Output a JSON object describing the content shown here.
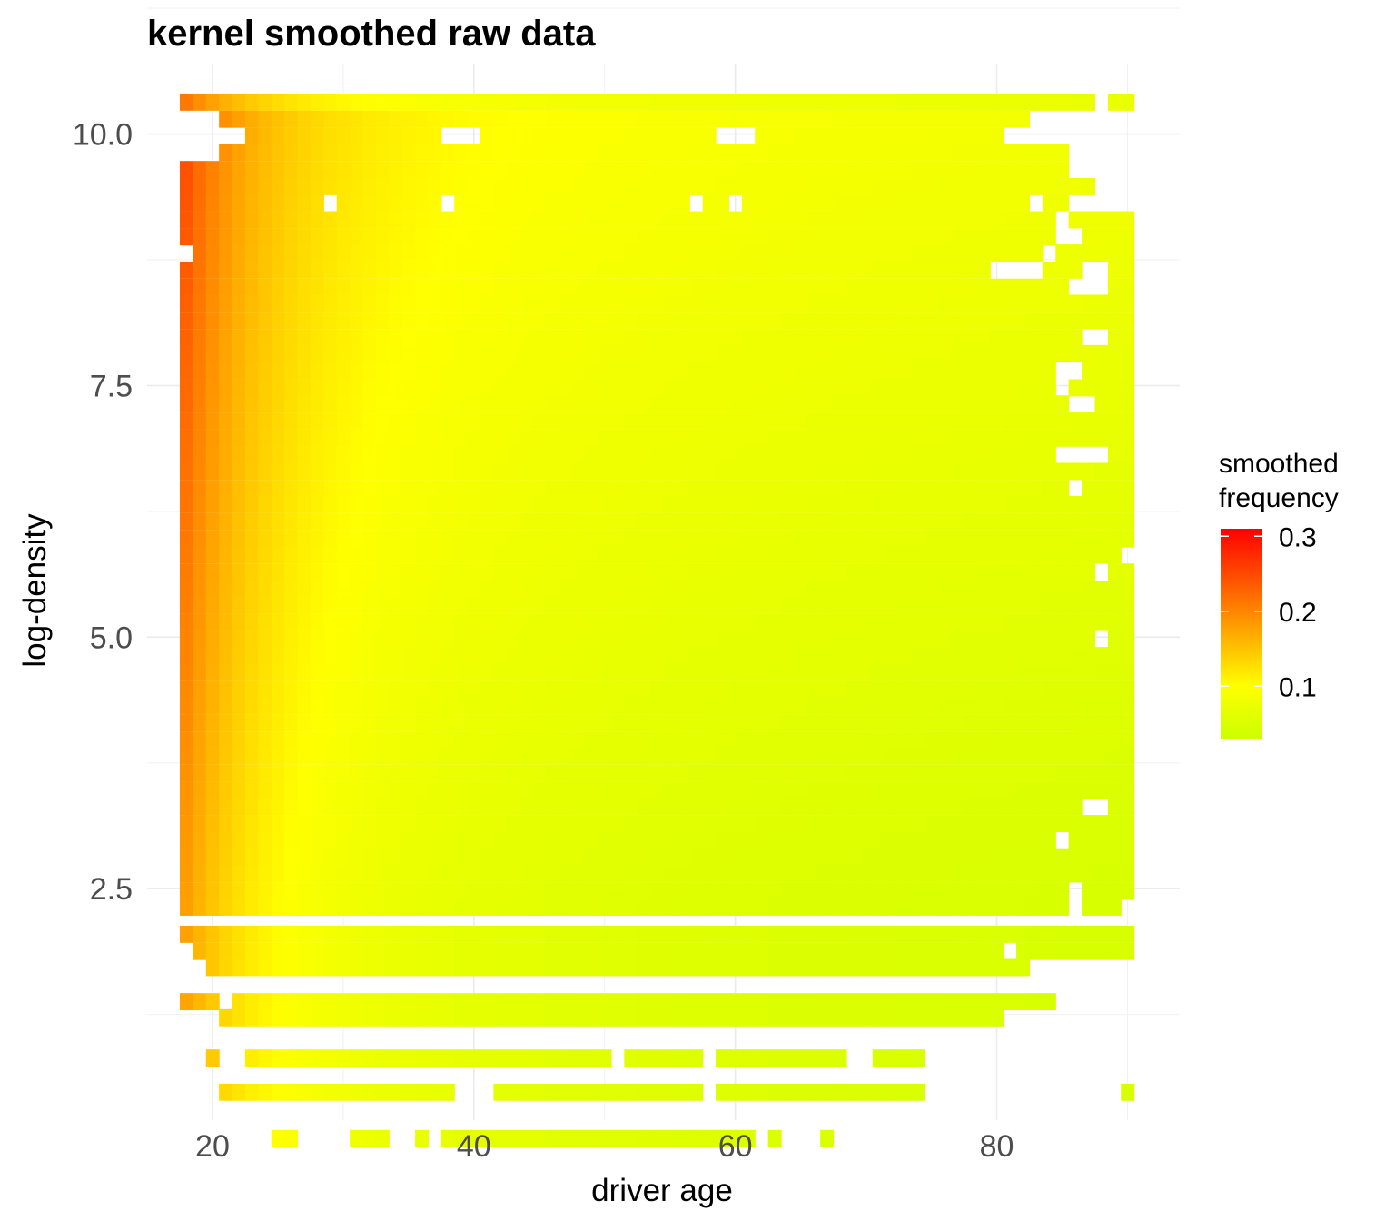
{
  "chart_data": {
    "type": "heatmap",
    "title": "kernel smoothed raw data",
    "xlabel": "driver age",
    "ylabel": "log-density",
    "xlim": [
      15,
      94
    ],
    "ylim": [
      0.2,
      10.7
    ],
    "x_ticks": [
      20,
      40,
      60,
      80
    ],
    "x_tick_labels": [
      "20",
      "40",
      "60",
      "80"
    ],
    "y_ticks": [
      2.5,
      5.0,
      7.5,
      10.0
    ],
    "y_tick_labels": [
      "2.5",
      "5.0",
      "7.5",
      "10.0"
    ],
    "grid": true,
    "legend": {
      "title_lines": [
        "smoothed",
        "frequency"
      ],
      "position": "right",
      "breaks": [
        0.3,
        0.2,
        0.1
      ],
      "break_labels": [
        "0.3",
        "0.2",
        "0.1"
      ],
      "min": 0.03,
      "max": 0.31,
      "colors": {
        "low": "#ccff00",
        "mid": "#ffff00",
        "high": "#ff0000"
      }
    },
    "x_range": [
      18,
      90
    ],
    "x_step": 1,
    "y_step": 0.165,
    "rows": [
      {
        "y": 10.32,
        "spans": [
          [
            18,
            87
          ],
          [
            89,
            90
          ]
        ],
        "v": [
          0.17,
          0.09
        ]
      },
      {
        "y": 10.15,
        "spans": [
          [
            21,
            82
          ]
        ]
      },
      {
        "y": 9.98,
        "spans": [
          [
            23,
            37
          ],
          [
            41,
            58
          ],
          [
            62,
            80
          ]
        ]
      },
      {
        "y": 9.82,
        "spans": [
          [
            21,
            85
          ]
        ]
      },
      {
        "y": 9.65,
        "spans": [
          [
            18,
            85
          ]
        ]
      },
      {
        "y": 9.48,
        "spans": [
          [
            18,
            87
          ]
        ]
      },
      {
        "y": 9.32,
        "spans": [
          [
            18,
            28
          ],
          [
            30,
            37
          ],
          [
            39,
            56
          ],
          [
            58,
            59
          ],
          [
            61,
            82
          ],
          [
            84,
            85
          ]
        ]
      },
      {
        "y": 9.15,
        "spans": [
          [
            18,
            84
          ],
          [
            86,
            90
          ]
        ]
      },
      {
        "y": 8.98,
        "spans": [
          [
            18,
            84
          ],
          [
            87,
            90
          ]
        ]
      },
      {
        "y": 8.82,
        "spans": [
          [
            19,
            83
          ],
          [
            85,
            90
          ]
        ]
      },
      {
        "y": 8.65,
        "spans": [
          [
            18,
            79
          ],
          [
            84,
            86
          ],
          [
            89,
            90
          ]
        ]
      },
      {
        "y": 8.48,
        "spans": [
          [
            18,
            85
          ],
          [
            89,
            90
          ]
        ]
      },
      {
        "y": 8.32,
        "spans": [
          [
            18,
            90
          ]
        ]
      },
      {
        "y": 8.15,
        "spans": [
          [
            18,
            90
          ]
        ]
      },
      {
        "y": 7.98,
        "spans": [
          [
            18,
            86
          ],
          [
            89,
            90
          ]
        ]
      },
      {
        "y": 7.82,
        "spans": [
          [
            18,
            90
          ]
        ]
      },
      {
        "y": 7.65,
        "spans": [
          [
            18,
            84
          ],
          [
            87,
            90
          ]
        ]
      },
      {
        "y": 7.48,
        "spans": [
          [
            18,
            84
          ],
          [
            86,
            90
          ]
        ]
      },
      {
        "y": 7.32,
        "spans": [
          [
            18,
            85
          ],
          [
            88,
            90
          ]
        ]
      },
      {
        "y": 7.15,
        "spans": [
          [
            18,
            90
          ]
        ]
      },
      {
        "y": 6.98,
        "spans": [
          [
            18,
            90
          ]
        ]
      },
      {
        "y": 6.82,
        "spans": [
          [
            18,
            84
          ],
          [
            89,
            90
          ]
        ]
      },
      {
        "y": 6.65,
        "spans": [
          [
            18,
            90
          ]
        ]
      },
      {
        "y": 6.48,
        "spans": [
          [
            18,
            85
          ],
          [
            87,
            90
          ]
        ]
      },
      {
        "y": 6.32,
        "spans": [
          [
            18,
            90
          ]
        ]
      },
      {
        "y": 6.15,
        "spans": [
          [
            18,
            90
          ]
        ]
      },
      {
        "y": 5.98,
        "spans": [
          [
            18,
            90
          ]
        ]
      },
      {
        "y": 5.82,
        "spans": [
          [
            18,
            89
          ]
        ]
      },
      {
        "y": 5.65,
        "spans": [
          [
            18,
            87
          ],
          [
            89,
            90
          ]
        ]
      },
      {
        "y": 5.48,
        "spans": [
          [
            18,
            90
          ]
        ]
      },
      {
        "y": 5.32,
        "spans": [
          [
            18,
            90
          ]
        ]
      },
      {
        "y": 5.15,
        "spans": [
          [
            18,
            90
          ]
        ]
      },
      {
        "y": 4.98,
        "spans": [
          [
            18,
            87
          ],
          [
            89,
            90
          ]
        ]
      },
      {
        "y": 4.82,
        "spans": [
          [
            18,
            90
          ]
        ]
      },
      {
        "y": 4.65,
        "spans": [
          [
            18,
            90
          ]
        ]
      },
      {
        "y": 4.48,
        "spans": [
          [
            18,
            90
          ]
        ]
      },
      {
        "y": 4.32,
        "spans": [
          [
            18,
            90
          ]
        ]
      },
      {
        "y": 4.15,
        "spans": [
          [
            18,
            90
          ]
        ]
      },
      {
        "y": 3.98,
        "spans": [
          [
            18,
            90
          ]
        ]
      },
      {
        "y": 3.82,
        "spans": [
          [
            18,
            90
          ]
        ]
      },
      {
        "y": 3.65,
        "spans": [
          [
            18,
            90
          ]
        ]
      },
      {
        "y": 3.48,
        "spans": [
          [
            18,
            90
          ]
        ]
      },
      {
        "y": 3.32,
        "spans": [
          [
            18,
            86
          ],
          [
            89,
            90
          ]
        ]
      },
      {
        "y": 3.15,
        "spans": [
          [
            18,
            90
          ]
        ]
      },
      {
        "y": 2.98,
        "spans": [
          [
            18,
            84
          ],
          [
            86,
            90
          ]
        ]
      },
      {
        "y": 2.82,
        "spans": [
          [
            18,
            90
          ]
        ]
      },
      {
        "y": 2.65,
        "spans": [
          [
            18,
            90
          ]
        ]
      },
      {
        "y": 2.48,
        "spans": [
          [
            18,
            85
          ],
          [
            87,
            90
          ]
        ]
      },
      {
        "y": 2.32,
        "spans": [
          [
            18,
            85
          ],
          [
            87,
            89
          ]
        ]
      },
      {
        "y": 2.05,
        "spans": [
          [
            18,
            90
          ]
        ]
      },
      {
        "y": 1.88,
        "spans": [
          [
            19,
            80
          ],
          [
            82,
            90
          ]
        ]
      },
      {
        "y": 1.72,
        "spans": [
          [
            20,
            82
          ]
        ]
      },
      {
        "y": 1.38,
        "spans": [
          [
            18,
            20
          ],
          [
            22,
            84
          ]
        ]
      },
      {
        "y": 1.22,
        "spans": [
          [
            21,
            80
          ]
        ]
      },
      {
        "y": 0.82,
        "spans": [
          [
            20,
            20
          ],
          [
            23,
            50
          ],
          [
            52,
            57
          ],
          [
            59,
            68
          ],
          [
            71,
            74
          ]
        ]
      },
      {
        "y": 0.48,
        "spans": [
          [
            21,
            38
          ],
          [
            42,
            57
          ],
          [
            59,
            74
          ],
          [
            90,
            90
          ]
        ]
      },
      {
        "y": 0.02,
        "spans": [
          [
            25,
            26
          ],
          [
            31,
            33
          ],
          [
            36,
            36
          ],
          [
            38,
            61
          ],
          [
            63,
            63
          ],
          [
            67,
            67
          ]
        ]
      }
    ]
  }
}
